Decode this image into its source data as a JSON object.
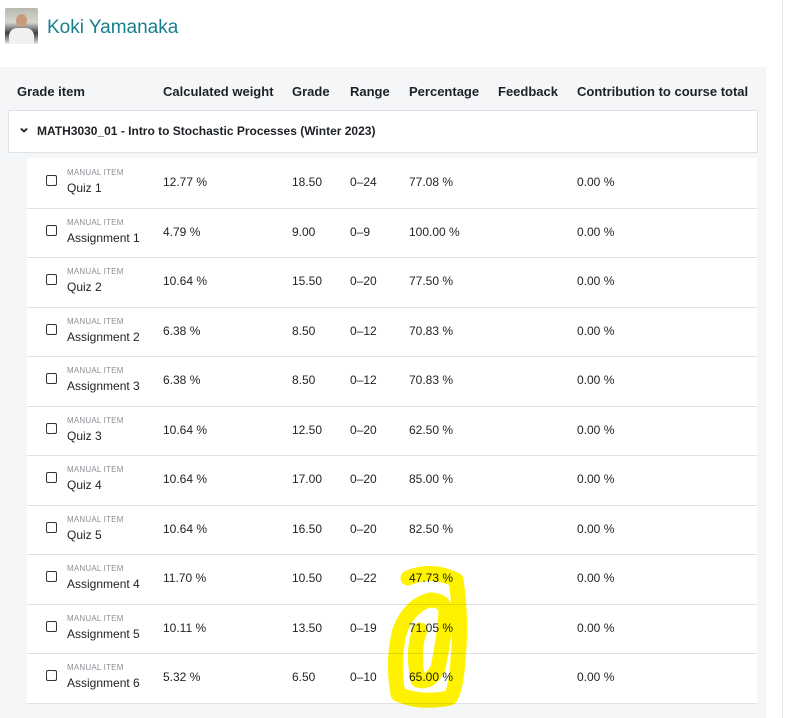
{
  "header": {
    "user_name": "Koki Yamanaka"
  },
  "table": {
    "columns": [
      "Grade item",
      "Calculated weight",
      "Grade",
      "Range",
      "Percentage",
      "Feedback",
      "Contribution to course total"
    ],
    "category": "MATH3030_01 - Intro to Stochastic Processes (Winter 2023)",
    "rows": [
      {
        "kind": "MANUAL ITEM",
        "name": "Quiz 1",
        "weight": "12.77 %",
        "grade": "18.50",
        "range": "0–24",
        "percentage": "77.08 %",
        "contribution": "0.00 %"
      },
      {
        "kind": "MANUAL ITEM",
        "name": "Assignment 1",
        "weight": "4.79 %",
        "grade": "9.00",
        "range": "0–9",
        "percentage": "100.00 %",
        "contribution": "0.00 %"
      },
      {
        "kind": "MANUAL ITEM",
        "name": "Quiz 2",
        "weight": "10.64 %",
        "grade": "15.50",
        "range": "0–20",
        "percentage": "77.50 %",
        "contribution": "0.00 %"
      },
      {
        "kind": "MANUAL ITEM",
        "name": "Assignment 2",
        "weight": "6.38 %",
        "grade": "8.50",
        "range": "0–12",
        "percentage": "70.83 %",
        "contribution": "0.00 %"
      },
      {
        "kind": "MANUAL ITEM",
        "name": "Assignment 3",
        "weight": "6.38 %",
        "grade": "8.50",
        "range": "0–12",
        "percentage": "70.83 %",
        "contribution": "0.00 %"
      },
      {
        "kind": "MANUAL ITEM",
        "name": "Quiz 3",
        "weight": "10.64 %",
        "grade": "12.50",
        "range": "0–20",
        "percentage": "62.50 %",
        "contribution": "0.00 %"
      },
      {
        "kind": "MANUAL ITEM",
        "name": "Quiz 4",
        "weight": "10.64 %",
        "grade": "17.00",
        "range": "0–20",
        "percentage": "85.00 %",
        "contribution": "0.00 %"
      },
      {
        "kind": "MANUAL ITEM",
        "name": "Quiz 5",
        "weight": "10.64 %",
        "grade": "16.50",
        "range": "0–20",
        "percentage": "82.50 %",
        "contribution": "0.00 %"
      },
      {
        "kind": "MANUAL ITEM",
        "name": "Assignment 4",
        "weight": "11.70 %",
        "grade": "10.50",
        "range": "0–22",
        "percentage": "47.73 %",
        "contribution": "0.00 %"
      },
      {
        "kind": "MANUAL ITEM",
        "name": "Assignment 5",
        "weight": "10.11 %",
        "grade": "13.50",
        "range": "0–19",
        "percentage": "71.05 %",
        "contribution": "0.00 %"
      },
      {
        "kind": "MANUAL ITEM",
        "name": "Assignment 6",
        "weight": "5.32 %",
        "grade": "6.50",
        "range": "0–10",
        "percentage": "65.00 %",
        "contribution": "0.00 %"
      }
    ]
  }
}
